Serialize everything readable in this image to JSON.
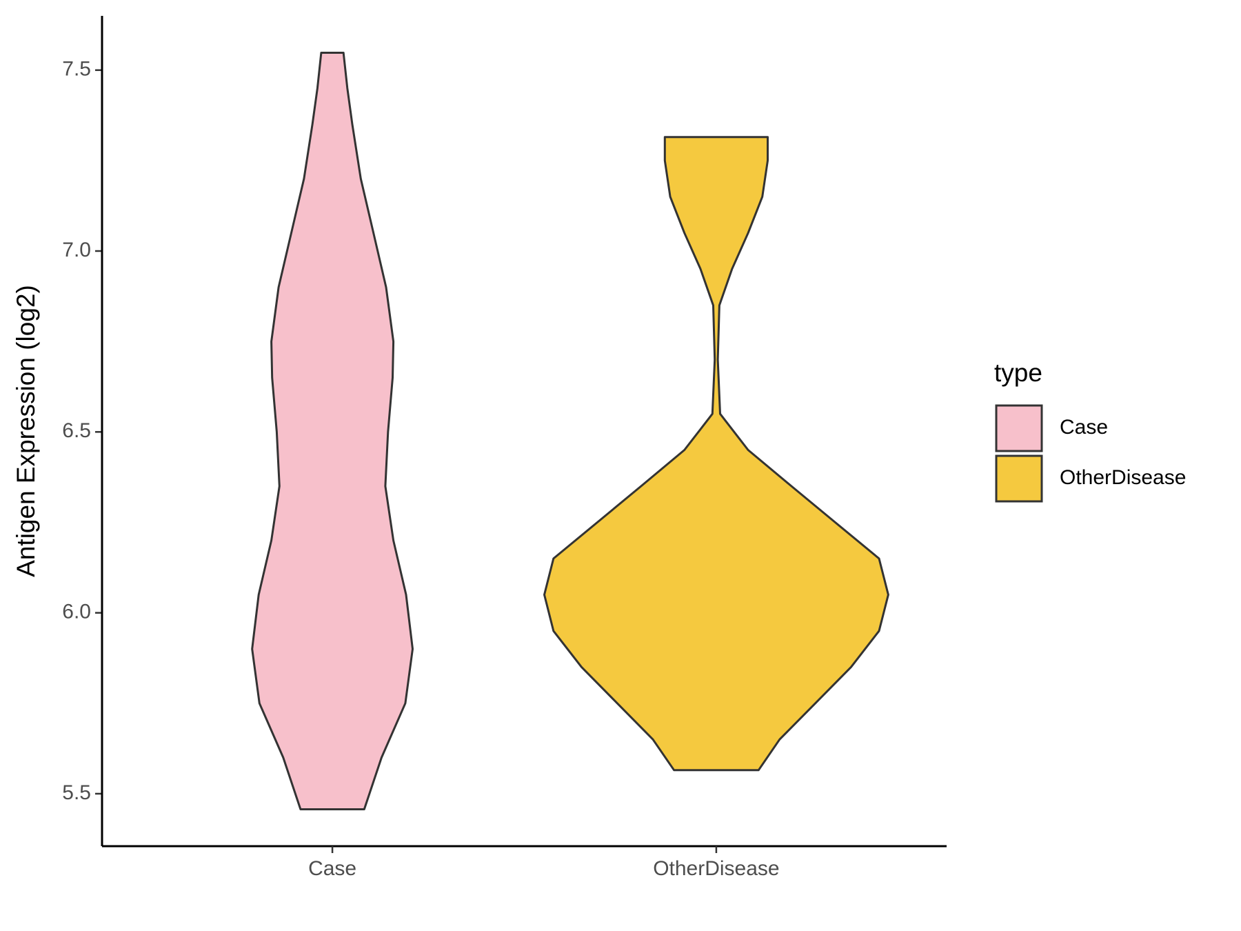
{
  "chart_data": {
    "type": "violin",
    "y_label": "Antigen Expression (log2)",
    "categories": [
      "Case",
      "OtherDisease"
    ],
    "legend_title": "type",
    "legend_position": "right",
    "series": [
      {
        "name": "Case",
        "color": "#f7c0cb",
        "y": [
          5.457,
          5.6,
          5.75,
          5.9,
          6.05,
          6.2,
          6.35,
          6.5,
          6.65,
          6.75,
          6.9,
          7.05,
          7.2,
          7.35,
          7.45,
          7.548
        ],
        "half_width": [
          0.083,
          0.128,
          0.19,
          0.209,
          0.192,
          0.159,
          0.138,
          0.145,
          0.157,
          0.159,
          0.14,
          0.107,
          0.074,
          0.052,
          0.039,
          0.029
        ]
      },
      {
        "name": "OtherDisease",
        "color": "#f5c93f",
        "y": [
          5.565,
          5.65,
          5.75,
          5.85,
          5.95,
          6.05,
          6.15,
          6.25,
          6.35,
          6.45,
          6.55,
          6.7,
          6.85,
          6.95,
          7.05,
          7.15,
          7.25,
          7.315
        ],
        "half_width": [
          0.11,
          0.165,
          0.258,
          0.351,
          0.424,
          0.448,
          0.424,
          0.31,
          0.196,
          0.083,
          0.01,
          0.004,
          0.008,
          0.041,
          0.083,
          0.12,
          0.134,
          0.134
        ]
      }
    ],
    "ylim": [
      5.355,
      7.65
    ],
    "yticks": [
      {
        "value": 5.5,
        "label": "5.5"
      },
      {
        "value": 6,
        "label": "6.0"
      },
      {
        "value": 6.5,
        "label": "6.5"
      },
      {
        "value": 7,
        "label": "7.0"
      },
      {
        "value": 7.5,
        "label": "7.5"
      }
    ],
    "grid": false
  }
}
